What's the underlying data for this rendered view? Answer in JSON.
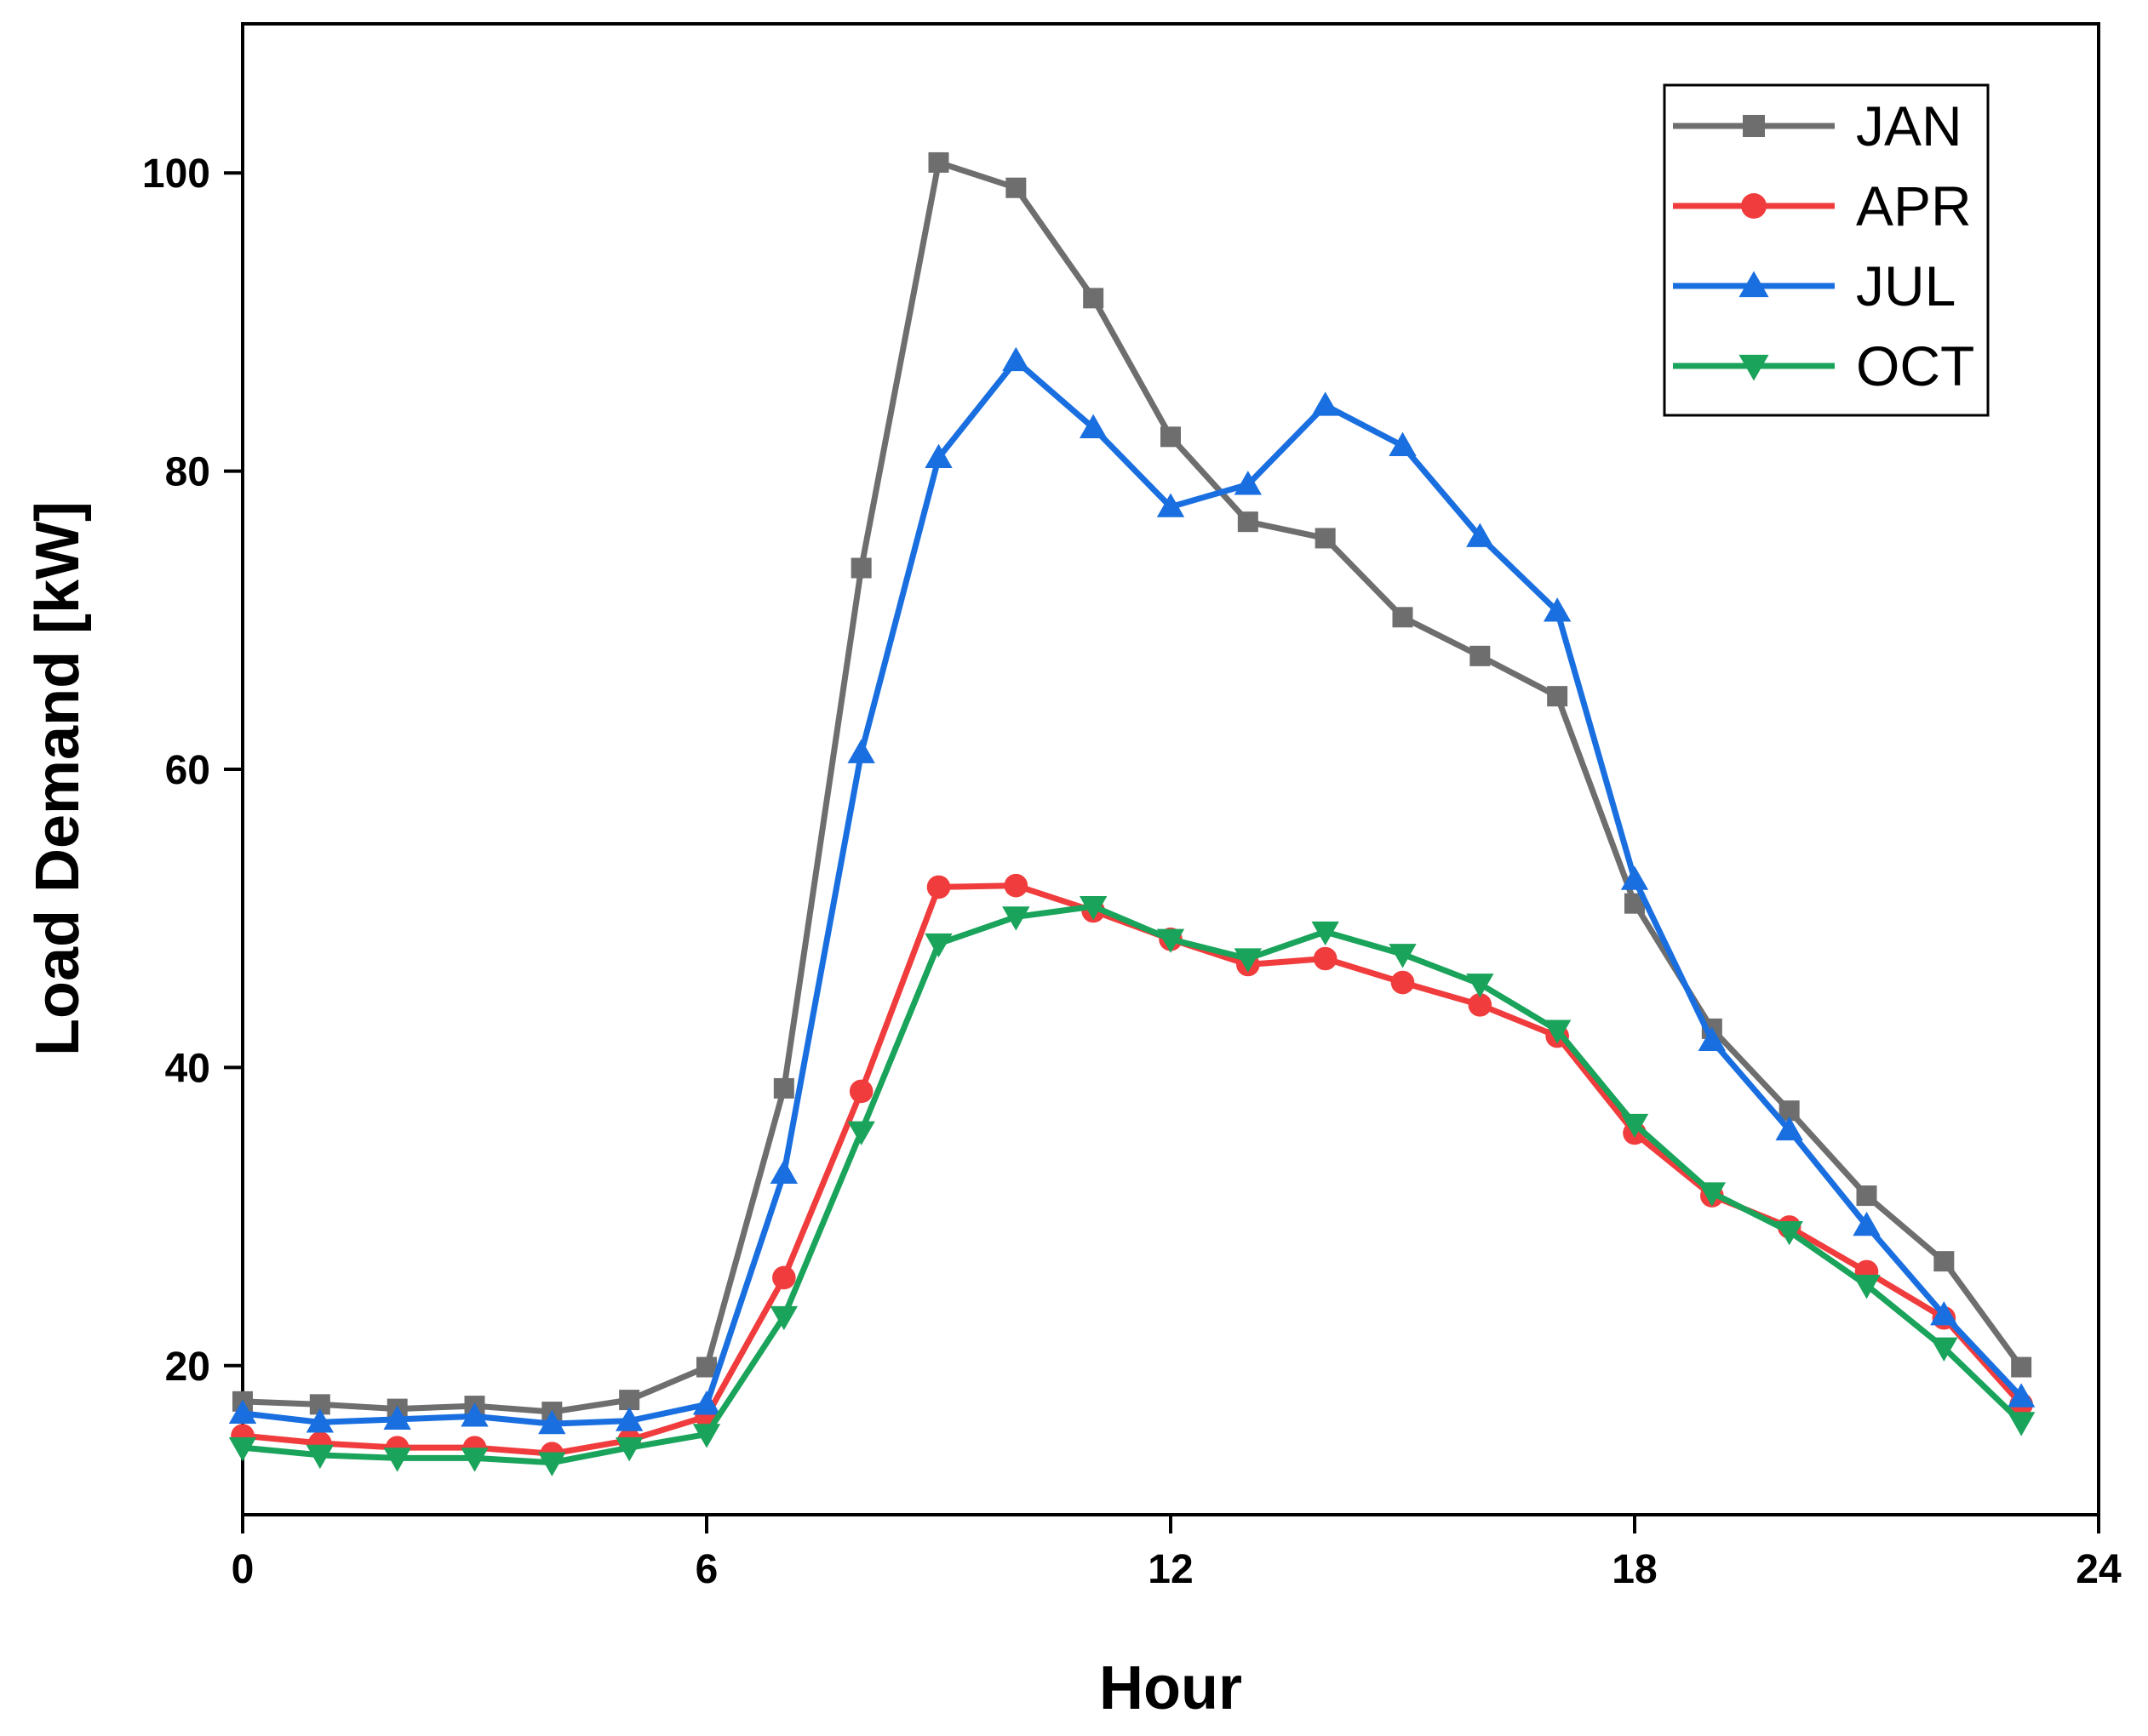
{
  "chart_data": {
    "type": "line",
    "title": "",
    "xlabel": "Hour",
    "ylabel": "Load Demand [kW]",
    "xlim": [
      0,
      24
    ],
    "ylim": [
      10,
      110
    ],
    "xticks": [
      0,
      6,
      12,
      18,
      24
    ],
    "yticks": [
      20,
      40,
      60,
      80,
      100
    ],
    "grid": false,
    "legend_position": "top-right",
    "x": [
      0,
      1,
      2,
      3,
      4,
      5,
      6,
      7,
      8,
      9,
      10,
      11,
      12,
      13,
      14,
      15,
      16,
      17,
      18,
      19,
      20,
      21,
      22,
      23
    ],
    "series": [
      {
        "name": "JAN",
        "color": "#6e6e6e",
        "marker": "square",
        "values": [
          17.6,
          17.4,
          17.1,
          17.3,
          16.9,
          17.7,
          19.9,
          38.6,
          73.5,
          100.7,
          99.0,
          91.6,
          82.3,
          76.6,
          75.5,
          70.2,
          67.6,
          64.9,
          51.0,
          42.6,
          37.1,
          31.4,
          27.0,
          19.9
        ]
      },
      {
        "name": "APR",
        "color": "#f03c3c",
        "marker": "circle",
        "values": [
          15.3,
          14.8,
          14.5,
          14.5,
          14.1,
          15.0,
          16.6,
          25.9,
          38.4,
          52.1,
          52.2,
          50.5,
          48.6,
          46.9,
          47.3,
          45.7,
          44.2,
          42.1,
          35.6,
          31.4,
          29.3,
          26.3,
          23.2,
          17.4
        ]
      },
      {
        "name": "JUL",
        "color": "#1a6fe0",
        "marker": "triangle-up",
        "values": [
          16.8,
          16.2,
          16.4,
          16.6,
          16.1,
          16.3,
          17.4,
          32.9,
          61.1,
          80.9,
          87.4,
          82.9,
          77.6,
          79.1,
          84.4,
          81.7,
          75.6,
          70.6,
          52.6,
          41.8,
          35.8,
          29.4,
          23.4,
          17.9
        ]
      },
      {
        "name": "OCT",
        "color": "#1aa35a",
        "marker": "triangle-down",
        "values": [
          14.5,
          14.0,
          13.8,
          13.8,
          13.5,
          14.5,
          15.4,
          23.3,
          35.7,
          48.3,
          50.1,
          50.8,
          48.6,
          47.3,
          49.1,
          47.6,
          45.6,
          42.5,
          36.2,
          31.6,
          29.0,
          25.4,
          21.2,
          16.2
        ]
      }
    ]
  }
}
